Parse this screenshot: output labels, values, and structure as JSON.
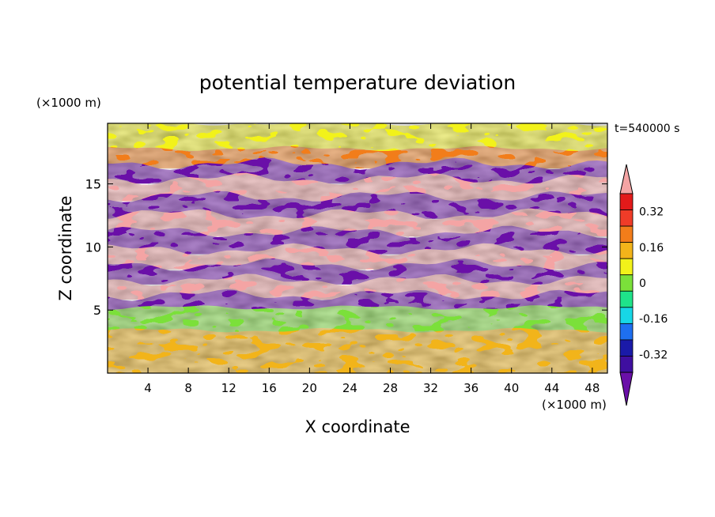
{
  "chart_data": {
    "type": "heatmap",
    "title": "potential temperature deviation",
    "xlabel": "X coordinate",
    "ylabel": "Z coordinate",
    "x_unit": "(×1000 m)",
    "y_unit": "(×1000 m)",
    "time_label": "t=540000 s",
    "xlim": [
      0,
      49.5
    ],
    "ylim": [
      0,
      19.8
    ],
    "x_ticks": [
      4,
      8,
      12,
      16,
      20,
      24,
      28,
      32,
      36,
      40,
      44,
      48
    ],
    "y_ticks": [
      5,
      10,
      15
    ],
    "colorbar": {
      "levels": [
        -0.48,
        -0.4,
        -0.32,
        -0.24,
        -0.16,
        -0.08,
        0,
        0.08,
        0.16,
        0.24,
        0.32,
        0.4,
        0.48
      ],
      "labels": [
        "0.32",
        "0.16",
        "0",
        "-0.16",
        "-0.32"
      ],
      "label_values": [
        0.32,
        0.16,
        0,
        -0.16,
        -0.32
      ],
      "colors": [
        "#6a0fa8",
        "#3f0fa0",
        "#1a1aa8",
        "#1e6ff0",
        "#17d7e6",
        "#1fe38a",
        "#7be03a",
        "#f2f21a",
        "#f2b41a",
        "#f27d1a",
        "#f03c28",
        "#e21a1a",
        "#f4a4a4"
      ],
      "extend": "both"
    },
    "bands": [
      {
        "z": [
          17.8,
          19.8
        ],
        "value": 0.05
      },
      {
        "z": [
          16.6,
          17.8
        ],
        "value": 0.2
      },
      {
        "z": [
          15.4,
          16.6
        ],
        "value": -0.5
      },
      {
        "z": [
          14.0,
          15.4
        ],
        "value": 0.5
      },
      {
        "z": [
          12.6,
          14.0
        ],
        "value": -0.5
      },
      {
        "z": [
          11.2,
          12.6
        ],
        "value": 0.5
      },
      {
        "z": [
          9.8,
          11.2
        ],
        "value": -0.5
      },
      {
        "z": [
          8.6,
          9.8
        ],
        "value": 0.5
      },
      {
        "z": [
          7.4,
          8.6
        ],
        "value": -0.5
      },
      {
        "z": [
          6.2,
          7.4
        ],
        "value": 0.5
      },
      {
        "z": [
          5.2,
          6.2
        ],
        "value": -0.5
      },
      {
        "z": [
          3.4,
          5.2
        ],
        "value": 0.0
      },
      {
        "z": [
          0,
          3.4
        ],
        "value": 0.1
      }
    ]
  }
}
